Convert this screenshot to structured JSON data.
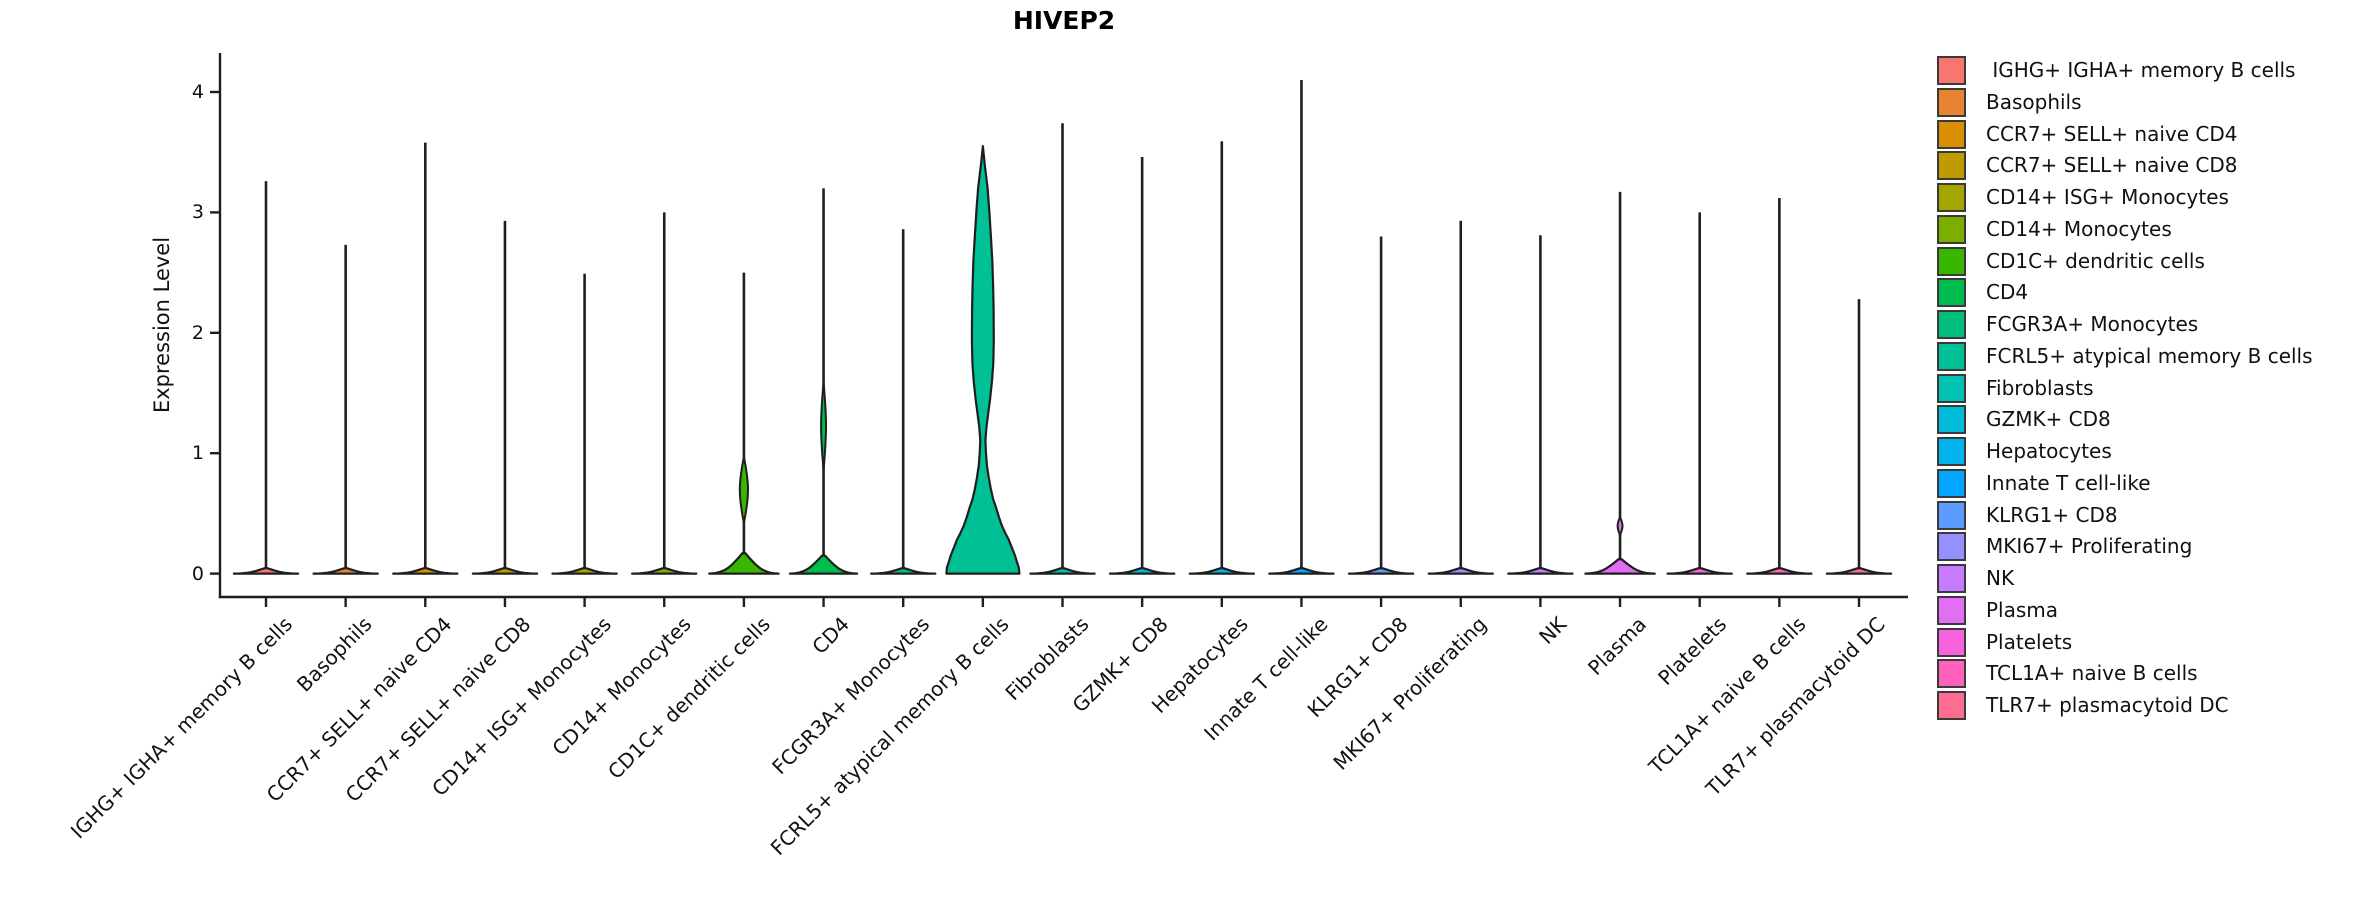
{
  "title": "HIVEP2",
  "y_axis": {
    "label": "Expression Level",
    "tick_labels": [
      "0",
      "1",
      "2",
      "3",
      "4"
    ]
  },
  "chart_data": {
    "type": "violin",
    "title": "HIVEP2",
    "xlabel": "",
    "ylabel": "Expression Level",
    "ylim": [
      0,
      4.3
    ],
    "yticks": [
      0,
      1,
      2,
      3,
      4
    ],
    "grid": false,
    "legend_position": "right",
    "note": "density half-widths are fractions of half slot width; bumps are [value_low, value_high, halfwidth_fraction]",
    "categories": [
      {
        "label": "IGHG+ IGHA+ memory B cells",
        "color": "#F8766D",
        "max_expression": 3.26,
        "base": {
          "hw": 0.88,
          "h": 0.045
        }
      },
      {
        "label": "Basophils",
        "color": "#EA8331",
        "max_expression": 2.73,
        "base": {
          "hw": 0.88,
          "h": 0.045
        }
      },
      {
        "label": "CCR7+ SELL+ naive CD4",
        "color": "#D89000",
        "max_expression": 3.58,
        "base": {
          "hw": 0.88,
          "h": 0.045
        }
      },
      {
        "label": "CCR7+ SELL+ naive CD8",
        "color": "#C09B00",
        "max_expression": 2.93,
        "base": {
          "hw": 0.88,
          "h": 0.045
        }
      },
      {
        "label": "CD14+ ISG+ Monocytes",
        "color": "#A3A500",
        "max_expression": 2.49,
        "base": {
          "hw": 0.88,
          "h": 0.045
        }
      },
      {
        "label": "CD14+ Monocytes",
        "color": "#7CAE00",
        "max_expression": 3.0,
        "base": {
          "hw": 0.88,
          "h": 0.045
        }
      },
      {
        "label": "CD1C+ dendritic cells",
        "color": "#39B600",
        "max_expression": 2.5,
        "base": {
          "hw": 0.95,
          "h": 0.17
        },
        "bumps": [
          [
            0.42,
            0.97,
            0.15
          ]
        ]
      },
      {
        "label": "CD4",
        "color": "#00BB4E",
        "max_expression": 3.2,
        "base": {
          "hw": 0.92,
          "h": 0.15
        },
        "bumps": [
          [
            0.86,
            1.59,
            0.09
          ]
        ]
      },
      {
        "label": "FCGR3A+ Monocytes",
        "color": "#00BF7D",
        "max_expression": 2.86,
        "base": {
          "hw": 0.88,
          "h": 0.045
        }
      },
      {
        "label": "FCRL5+ atypical memory B cells",
        "color": "#00C096",
        "max_expression": 3.55,
        "profile": [
          [
            3.55,
            0.0
          ],
          [
            3.4,
            0.05
          ],
          [
            3.2,
            0.13
          ],
          [
            3.0,
            0.18
          ],
          [
            2.8,
            0.22
          ],
          [
            2.6,
            0.26
          ],
          [
            2.4,
            0.28
          ],
          [
            2.2,
            0.295
          ],
          [
            1.94,
            0.3
          ],
          [
            1.75,
            0.285
          ],
          [
            1.6,
            0.25
          ],
          [
            1.45,
            0.2
          ],
          [
            1.35,
            0.155
          ],
          [
            1.22,
            0.1
          ],
          [
            1.11,
            0.07
          ],
          [
            1.0,
            0.085
          ],
          [
            0.9,
            0.11
          ],
          [
            0.8,
            0.16
          ],
          [
            0.7,
            0.22
          ],
          [
            0.62,
            0.28
          ],
          [
            0.55,
            0.36
          ],
          [
            0.47,
            0.44
          ],
          [
            0.4,
            0.52
          ],
          [
            0.34,
            0.61
          ],
          [
            0.28,
            0.71
          ],
          [
            0.21,
            0.8
          ],
          [
            0.15,
            0.88
          ],
          [
            0.1,
            0.93
          ],
          [
            0.05,
            0.985
          ],
          [
            0.0,
            1.0
          ]
        ]
      },
      {
        "label": "Fibroblasts",
        "color": "#00C1B2",
        "max_expression": 3.74,
        "base": {
          "hw": 0.88,
          "h": 0.045
        }
      },
      {
        "label": "GZMK+ CD8",
        "color": "#00BCD8",
        "max_expression": 3.46,
        "base": {
          "hw": 0.88,
          "h": 0.045
        }
      },
      {
        "label": "Hepatocytes",
        "color": "#00B3EC",
        "max_expression": 3.59,
        "base": {
          "hw": 0.88,
          "h": 0.045
        }
      },
      {
        "label": "Innate T cell-like",
        "color": "#00A6FF",
        "max_expression": 4.1,
        "base": {
          "hw": 0.88,
          "h": 0.045
        }
      },
      {
        "label": "KLRG1+ CD8",
        "color": "#5E9BFF",
        "max_expression": 2.8,
        "base": {
          "hw": 0.88,
          "h": 0.045
        }
      },
      {
        "label": "MKI67+ Proliferating",
        "color": "#9590FF",
        "max_expression": 2.93,
        "base": {
          "hw": 0.88,
          "h": 0.045
        }
      },
      {
        "label": "NK",
        "color": "#C77CFF",
        "max_expression": 2.81,
        "base": {
          "hw": 0.88,
          "h": 0.045
        }
      },
      {
        "label": "Plasma",
        "color": "#E26EF3",
        "max_expression": 3.17,
        "base": {
          "hw": 0.95,
          "h": 0.12
        },
        "bumps": [
          [
            0.32,
            0.47,
            0.09
          ]
        ]
      },
      {
        "label": "Platelets",
        "color": "#F763DF",
        "max_expression": 3.0,
        "base": {
          "hw": 0.88,
          "h": 0.045
        }
      },
      {
        "label": "TCL1A+ naive B cells",
        "color": "#FF62BC",
        "max_expression": 3.12,
        "base": {
          "hw": 0.88,
          "h": 0.045
        }
      },
      {
        "label": "TLR7+ plasmacytoid DC",
        "color": "#FF6C92",
        "max_expression": 2.28,
        "base": {
          "hw": 0.88,
          "h": 0.045
        }
      }
    ]
  },
  "legend": {
    "entries": [
      {
        "label": " IGHG+ IGHA+ memory B cells",
        "color": "#F8766D"
      },
      {
        "label": "Basophils",
        "color": "#EA8331"
      },
      {
        "label": "CCR7+ SELL+ naive CD4",
        "color": "#D89000"
      },
      {
        "label": "CCR7+ SELL+ naive CD8",
        "color": "#C09B00"
      },
      {
        "label": "CD14+ ISG+ Monocytes",
        "color": "#A3A500"
      },
      {
        "label": "CD14+ Monocytes",
        "color": "#7CAE00"
      },
      {
        "label": "CD1C+ dendritic cells",
        "color": "#39B600"
      },
      {
        "label": "CD4",
        "color": "#00BB4E"
      },
      {
        "label": "FCGR3A+ Monocytes",
        "color": "#00BF7D"
      },
      {
        "label": "FCRL5+ atypical memory B cells",
        "color": "#00C096"
      },
      {
        "label": "Fibroblasts",
        "color": "#00C1B2"
      },
      {
        "label": "GZMK+ CD8",
        "color": "#00BCD8"
      },
      {
        "label": "Hepatocytes",
        "color": "#00B3EC"
      },
      {
        "label": "Innate T cell-like",
        "color": "#00A6FF"
      },
      {
        "label": "KLRG1+ CD8",
        "color": "#5E9BFF"
      },
      {
        "label": "MKI67+ Proliferating",
        "color": "#9590FF"
      },
      {
        "label": "NK",
        "color": "#C77CFF"
      },
      {
        "label": "Plasma",
        "color": "#E26EF3"
      },
      {
        "label": "Platelets",
        "color": "#F763DF"
      },
      {
        "label": "TCL1A+ naive B cells",
        "color": "#FF62BC"
      },
      {
        "label": "TLR7+ plasmacytoid DC",
        "color": "#FF6C92"
      }
    ]
  }
}
